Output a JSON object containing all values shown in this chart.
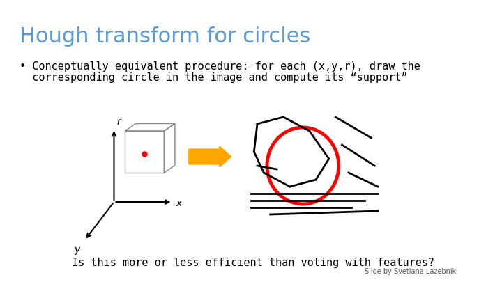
{
  "title": "Hough transform for circles",
  "title_color": "#5B9BD5",
  "title_fontsize": 22,
  "bullet_text_line1": "• Conceptually equivalent procedure: for each (x,y,r), draw the",
  "bullet_text_line2": "  corresponding circle in the image and compute its “support”",
  "bullet_fontsize": 11,
  "question_text": "Is this more or less efficient than voting with features?",
  "question_fontsize": 11,
  "credit_text": "Slide by Svetlana Lazebnik",
  "credit_fontsize": 7,
  "bg_color": "#ffffff",
  "text_color": "#000000"
}
